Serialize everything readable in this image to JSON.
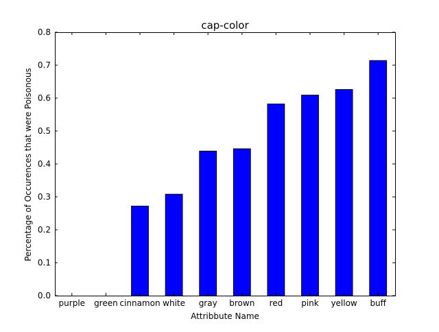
{
  "chart_data": {
    "type": "bar",
    "title": "cap-color",
    "xlabel": "Attribbute Name",
    "ylabel": "Percentage of Occurences that were Poisonous",
    "categories": [
      "purple",
      "green",
      "cinnamon",
      "white",
      "gray",
      "brown",
      "red",
      "pink",
      "yellow",
      "buff"
    ],
    "values": [
      0.0,
      0.0,
      0.272,
      0.308,
      0.439,
      0.446,
      0.582,
      0.609,
      0.626,
      0.714
    ],
    "ylim": [
      0.0,
      0.8
    ],
    "yticks": [
      "0.0",
      "0.1",
      "0.2",
      "0.3",
      "0.4",
      "0.5",
      "0.6",
      "0.7",
      "0.8"
    ],
    "grid": false,
    "legend": "none",
    "bar_color": "#0000ff",
    "edge_color": "#000000"
  }
}
